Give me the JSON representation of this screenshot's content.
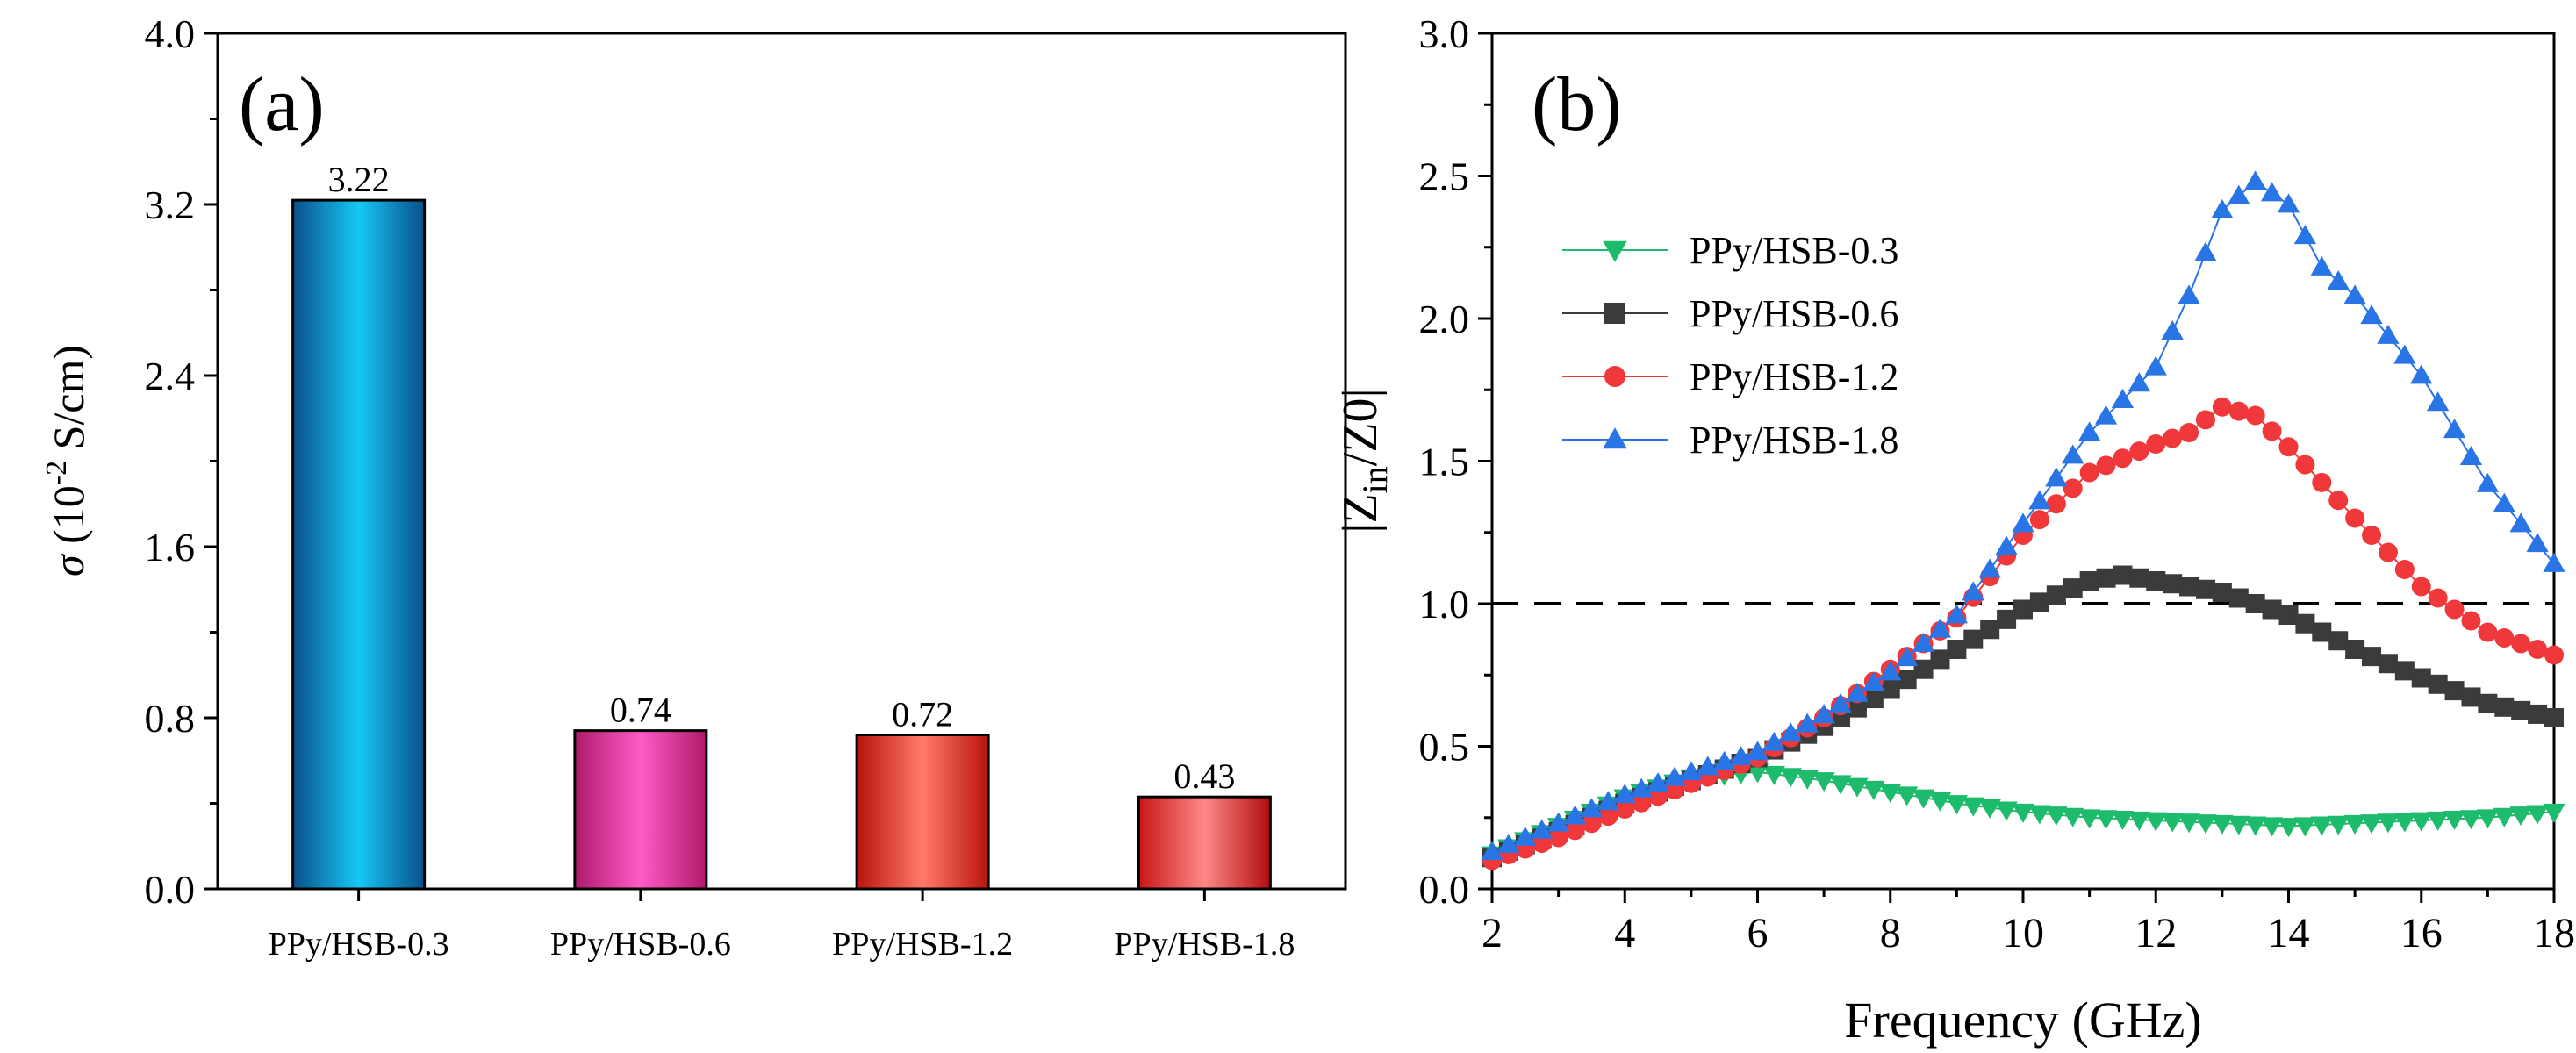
{
  "chart_data": [
    {
      "type": "bar",
      "panel_label": "(a)",
      "ylabel_symbol": "σ",
      "ylabel_text_pre": " (10",
      "ylabel_exp": "-2",
      "ylabel_text_post": " S/cm)",
      "ylim": [
        0,
        4.0
      ],
      "yticks": [
        "0.0",
        "0.8",
        "1.6",
        "2.4",
        "3.2",
        "4.0"
      ],
      "categories": [
        "PPy/HSB-0.3",
        "PPy/HSB-0.6",
        "PPy/HSB-1.2",
        "PPy/HSB-1.8"
      ],
      "values": [
        3.22,
        0.74,
        0.72,
        0.43
      ],
      "value_labels": [
        "3.22",
        "0.74",
        "0.72",
        "0.43"
      ],
      "colors": [
        [
          "#0a4f8a",
          "#16c8f5",
          "#0a4f8a"
        ],
        [
          "#b01a6a",
          "#ff5bc8",
          "#b01a6a"
        ],
        [
          "#b8140c",
          "#ff7a6a",
          "#b8140c"
        ],
        [
          "#c81616",
          "#ff8888",
          "#b00e0e"
        ]
      ]
    },
    {
      "type": "line",
      "panel_label": "(b)",
      "xlabel": "Frequency (GHz)",
      "ylabel_pre": "|Z",
      "ylabel_sub": "in",
      "ylabel_post": "/Z0|",
      "xlim": [
        2,
        18
      ],
      "ylim": [
        0,
        3.0
      ],
      "xticks": [
        "2",
        "4",
        "6",
        "8",
        "10",
        "12",
        "14",
        "16",
        "18"
      ],
      "yticks": [
        "0.0",
        "0.5",
        "1.0",
        "1.5",
        "2.0",
        "2.5",
        "3.0"
      ],
      "reference_line_y": 1.0,
      "legend_position": "upper-left",
      "series": [
        {
          "name": "PPy/HSB-0.3",
          "marker": "triangle-down",
          "color": "#1dbb6b",
          "x": [
            2,
            3,
            4,
            5,
            6,
            7,
            8,
            9,
            10,
            11,
            12,
            13,
            14,
            15,
            16,
            17,
            18
          ],
          "y": [
            0.12,
            0.22,
            0.32,
            0.39,
            0.41,
            0.38,
            0.34,
            0.3,
            0.27,
            0.25,
            0.24,
            0.23,
            0.22,
            0.23,
            0.24,
            0.25,
            0.27
          ]
        },
        {
          "name": "PPy/HSB-0.6",
          "marker": "square",
          "color": "#3b3b3b",
          "x": [
            2,
            3,
            4,
            5,
            6,
            7,
            8,
            9,
            10,
            11,
            11.5,
            12,
            13,
            14,
            15,
            16,
            17,
            18
          ],
          "y": [
            0.11,
            0.2,
            0.3,
            0.38,
            0.46,
            0.57,
            0.7,
            0.84,
            0.98,
            1.08,
            1.1,
            1.08,
            1.04,
            0.96,
            0.84,
            0.74,
            0.65,
            0.6
          ]
        },
        {
          "name": "PPy/HSB-1.2",
          "marker": "circle",
          "color": "#f0373a",
          "x": [
            2,
            3,
            4,
            5,
            6,
            7,
            8,
            9,
            10,
            11,
            12,
            12.5,
            13,
            13.5,
            14,
            15,
            16,
            17,
            18
          ],
          "y": [
            0.1,
            0.18,
            0.28,
            0.37,
            0.46,
            0.6,
            0.77,
            0.95,
            1.24,
            1.46,
            1.56,
            1.6,
            1.69,
            1.66,
            1.55,
            1.3,
            1.06,
            0.9,
            0.82
          ]
        },
        {
          "name": "PPy/HSB-1.8",
          "marker": "triangle-up",
          "color": "#2a75e6",
          "x": [
            2,
            3,
            4,
            5,
            6,
            7,
            8,
            9,
            10,
            11,
            12,
            12.5,
            13,
            13.5,
            14,
            14.5,
            15,
            16,
            17,
            18
          ],
          "y": [
            0.13,
            0.23,
            0.33,
            0.41,
            0.48,
            0.61,
            0.76,
            0.96,
            1.28,
            1.6,
            1.83,
            2.08,
            2.38,
            2.48,
            2.4,
            2.18,
            2.08,
            1.8,
            1.42,
            1.14
          ]
        }
      ]
    }
  ]
}
